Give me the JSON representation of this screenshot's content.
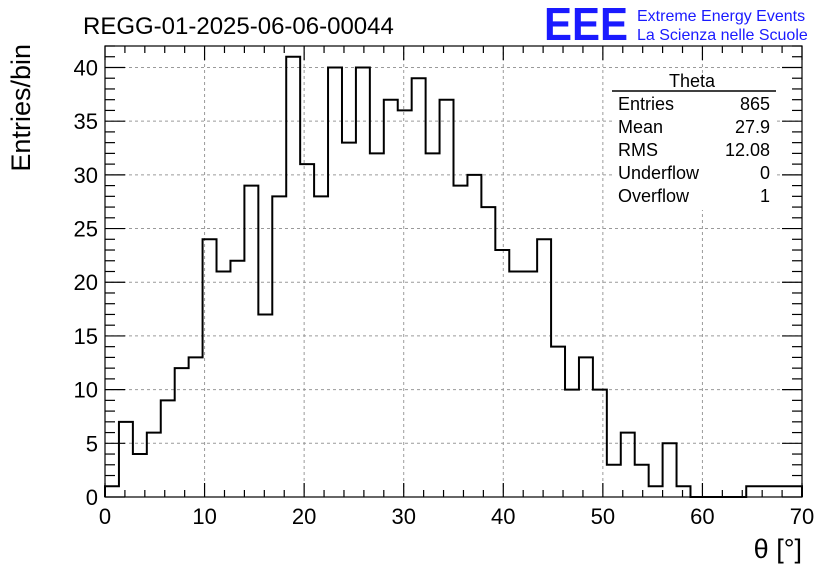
{
  "page": {
    "run_title": "REGG-01-2025-06-06-00044",
    "logo_text": "EEE",
    "logo_line1": "Extreme Energy Events",
    "logo_line2": "La Scienza nelle Scuole"
  },
  "stats_box": {
    "title": "Theta",
    "rows": [
      {
        "label": "Entries",
        "value": "865"
      },
      {
        "label": "Mean",
        "value": "27.9"
      },
      {
        "label": "RMS",
        "value": "12.08"
      },
      {
        "label": "Underflow",
        "value": "0"
      },
      {
        "label": "Overflow",
        "value": "1"
      }
    ]
  },
  "colors": {
    "histogram_line": "#000000",
    "grid": "#9a9a9a",
    "logo": "#1a1aff"
  },
  "chart_data": {
    "type": "histogram",
    "title": "REGG-01-2025-06-06-00044",
    "xlabel": "θ [°]",
    "ylabel": "Entries/bin",
    "xlim": [
      0,
      70
    ],
    "ylim": [
      0,
      42
    ],
    "x_ticks": [
      "0",
      "10",
      "20",
      "30",
      "40",
      "50",
      "60",
      "70"
    ],
    "y_ticks": [
      "0",
      "5",
      "10",
      "15",
      "20",
      "25",
      "30",
      "35",
      "40"
    ],
    "grid": true,
    "bin_width": 1.4,
    "bin_edges_start": 0,
    "values": [
      1,
      7,
      4,
      6,
      9,
      12,
      13,
      24,
      21,
      22,
      29,
      17,
      28,
      41,
      31,
      28,
      40,
      33,
      40,
      32,
      37,
      36,
      39,
      32,
      37,
      29,
      30,
      27,
      23,
      21,
      21,
      24,
      14,
      10,
      13,
      10,
      3,
      6,
      3,
      1,
      5,
      1,
      0,
      0,
      0,
      0,
      1,
      1,
      1,
      1
    ]
  }
}
